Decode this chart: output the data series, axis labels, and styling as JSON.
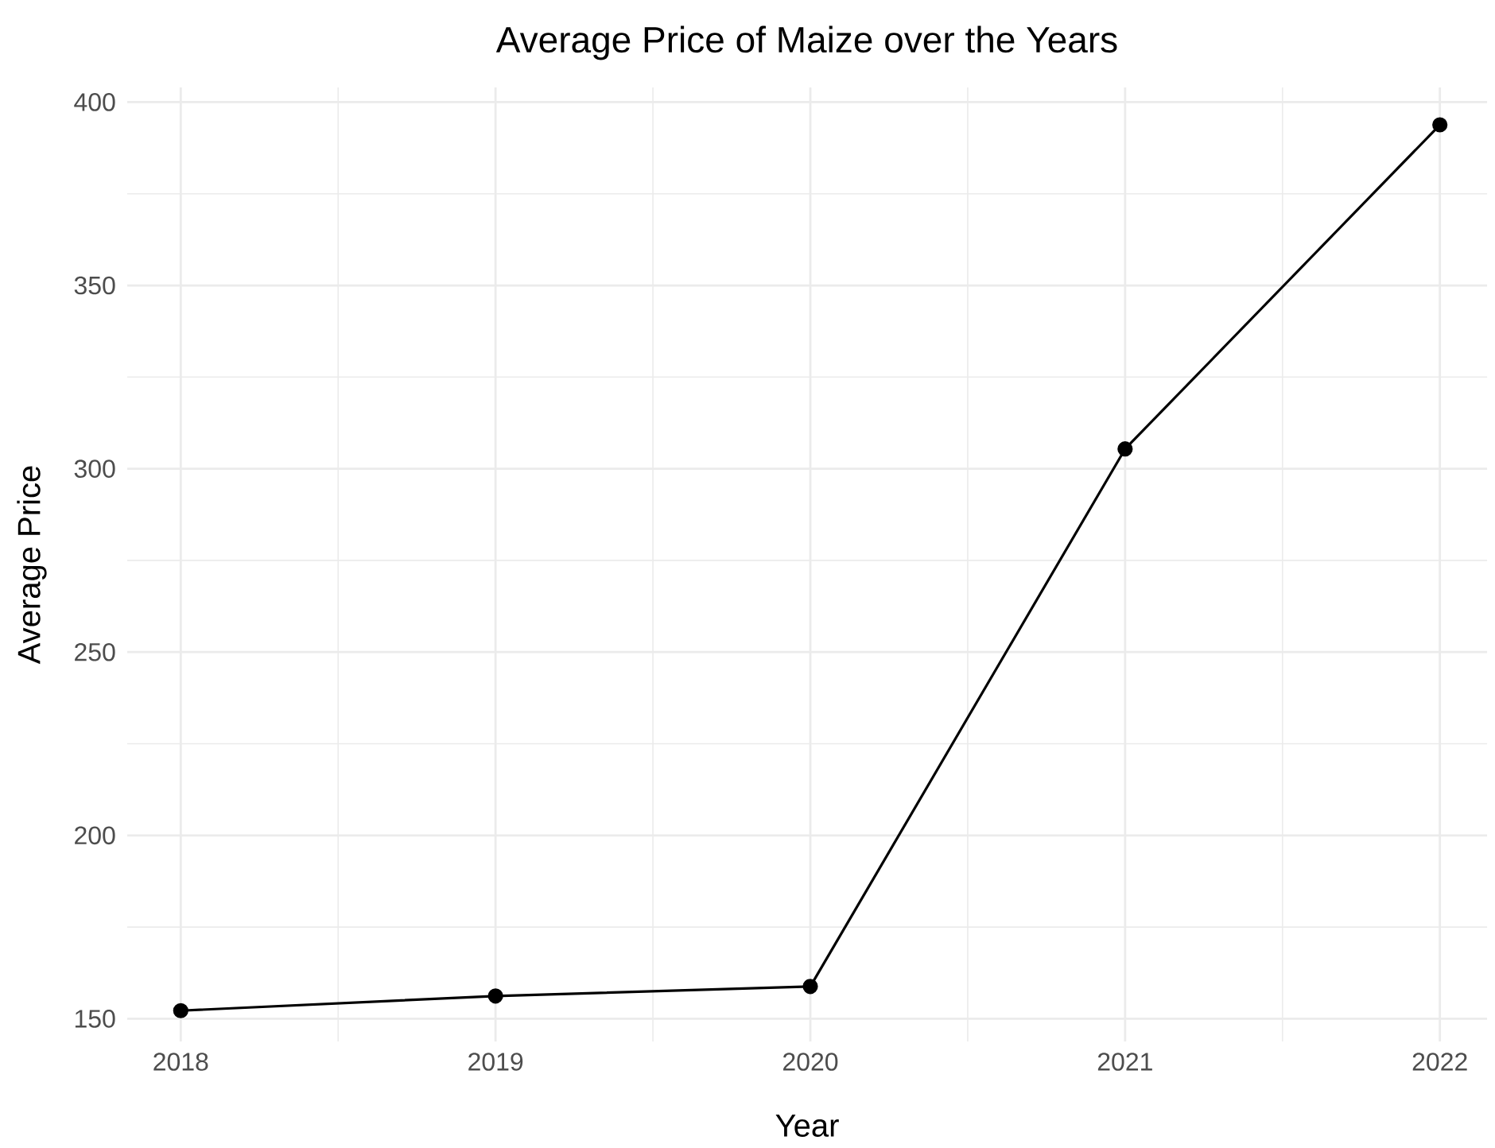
{
  "chart_data": {
    "type": "line",
    "title": "Average Price of Maize over the Years",
    "xlabel": "Year",
    "ylabel": "Average Price",
    "x": [
      2018,
      2019,
      2020,
      2021,
      2022
    ],
    "series": [
      {
        "color": "#000000",
        "values": [
          152.2,
          156.2,
          158.8,
          305.4,
          393.8
        ]
      }
    ],
    "xlim": [
      2017.83,
      2022.15
    ],
    "ylim": [
      143.8,
      404
    ],
    "xticks": [
      2018,
      2019,
      2020,
      2021,
      2022
    ],
    "yticks": [
      150,
      200,
      250,
      300,
      350,
      400
    ],
    "grid": true,
    "marker": "circle",
    "line_style": "solid"
  }
}
